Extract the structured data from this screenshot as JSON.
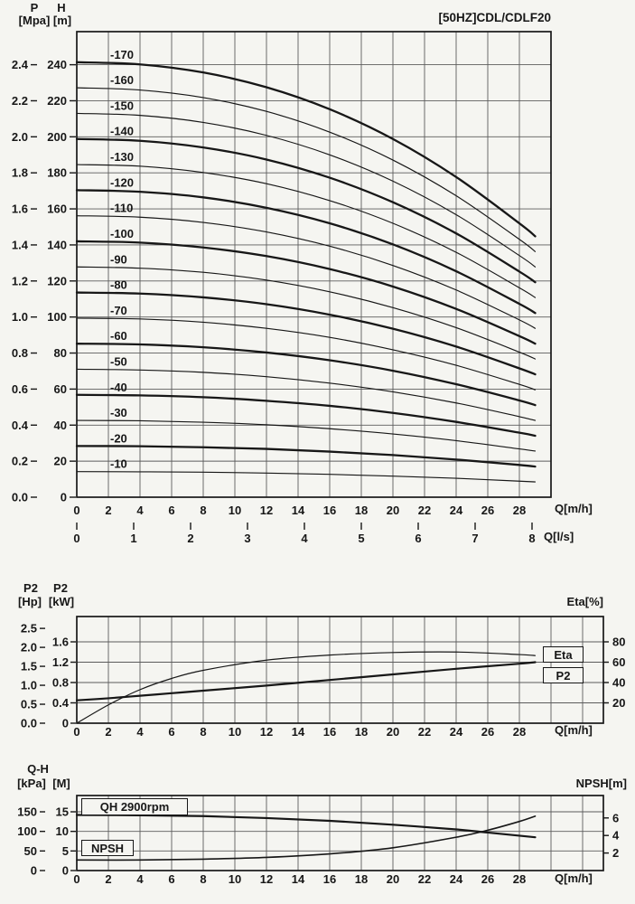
{
  "labels": {
    "p": "P",
    "h": "H",
    "mpa": "[Mpa]",
    "m": "[m]",
    "q_mh": "Q[m/h]",
    "q_ls": "Q[l/s]",
    "p2_hp": "P2",
    "p2_kw": "P2",
    "hp": "[Hp]",
    "kw": "[kW]",
    "eta_pct": "Eta[%]",
    "qh": "Q-H",
    "kpa": "[kPa]",
    "m_upper": "[M]",
    "npsh_m": "NPSH[m]"
  },
  "chart_data": [
    {
      "id": "head-curves",
      "type": "line",
      "title": "[50HZ]CDL/CDLF20",
      "x_axis": {
        "label": "Q[m/h]",
        "min": 0,
        "max": 30,
        "ticks": [
          0,
          2,
          4,
          6,
          8,
          10,
          12,
          14,
          16,
          18,
          20,
          22,
          24,
          26,
          28
        ]
      },
      "x_axis_secondary": {
        "label": "Q[l/s]",
        "min": 0,
        "max": 8,
        "ticks": [
          0,
          1,
          2,
          3,
          4,
          5,
          6,
          7,
          8
        ]
      },
      "y_axis_mpa": {
        "label": "P [Mpa]",
        "min": 0,
        "max": 2.4,
        "ticks": [
          "0.0",
          "0.2",
          "0.4",
          "0.6",
          "0.8",
          "1.0",
          "1.2",
          "1.4",
          "1.6",
          "1.8",
          "2.0",
          "2.2",
          "2.4"
        ]
      },
      "y_axis_m": {
        "label": "H [m]",
        "min": 0,
        "max": 258,
        "ticks": [
          0,
          20,
          40,
          60,
          80,
          100,
          120,
          140,
          160,
          180,
          200,
          220,
          240
        ]
      },
      "q": [
        0,
        4,
        8,
        12,
        16,
        20,
        24,
        28,
        29
      ],
      "curves": [
        {
          "label": "-170",
          "bold": true,
          "head_m": [
            241.4,
            240.2,
            235.7,
            227.5,
            215.3,
            198.8,
            177.7,
            152.0,
            144.8
          ]
        },
        {
          "label": "-160",
          "bold": false,
          "head_m": [
            227.2,
            226.0,
            221.8,
            214.1,
            202.6,
            187.1,
            167.3,
            143.1,
            136.3
          ]
        },
        {
          "label": "-150",
          "bold": false,
          "head_m": [
            213.0,
            211.9,
            208.0,
            200.8,
            190.0,
            175.4,
            156.8,
            134.1,
            127.8
          ]
        },
        {
          "label": "-140",
          "bold": true,
          "head_m": [
            198.8,
            197.8,
            194.1,
            187.4,
            177.3,
            163.7,
            146.4,
            125.2,
            119.3
          ]
        },
        {
          "label": "-130",
          "bold": false,
          "head_m": [
            184.6,
            183.7,
            180.2,
            174.0,
            164.6,
            152.0,
            135.9,
            116.2,
            110.8
          ]
        },
        {
          "label": "-120",
          "bold": true,
          "head_m": [
            170.4,
            169.5,
            166.4,
            160.6,
            152.0,
            140.3,
            125.4,
            107.3,
            102.2
          ]
        },
        {
          "label": "-110",
          "bold": false,
          "head_m": [
            156.2,
            155.4,
            152.5,
            147.2,
            139.3,
            128.6,
            115.0,
            98.4,
            93.7
          ]
        },
        {
          "label": "-100",
          "bold": true,
          "head_m": [
            142.0,
            141.3,
            138.6,
            133.8,
            126.6,
            116.9,
            104.5,
            89.4,
            85.2
          ]
        },
        {
          "label": "-90",
          "bold": false,
          "head_m": [
            127.8,
            127.1,
            124.8,
            120.5,
            114.0,
            105.2,
            94.1,
            80.5,
            76.7
          ]
        },
        {
          "label": "-80",
          "bold": true,
          "head_m": [
            113.6,
            113.0,
            110.9,
            107.1,
            101.3,
            93.5,
            83.6,
            71.5,
            68.2
          ]
        },
        {
          "label": "-70",
          "bold": false,
          "head_m": [
            99.4,
            98.9,
            97.1,
            93.7,
            88.7,
            81.8,
            73.2,
            62.6,
            59.6
          ]
        },
        {
          "label": "-60",
          "bold": true,
          "head_m": [
            85.2,
            84.8,
            83.2,
            80.3,
            76.0,
            70.2,
            62.7,
            53.7,
            51.1
          ]
        },
        {
          "label": "-50",
          "bold": false,
          "head_m": [
            71.0,
            70.6,
            69.3,
            66.9,
            63.3,
            58.5,
            52.3,
            44.7,
            42.6
          ]
        },
        {
          "label": "-40",
          "bold": true,
          "head_m": [
            56.8,
            56.5,
            55.5,
            53.5,
            50.7,
            46.8,
            41.8,
            35.8,
            34.1
          ]
        },
        {
          "label": "-30",
          "bold": false,
          "head_m": [
            42.6,
            42.4,
            41.6,
            40.2,
            38.0,
            35.1,
            31.4,
            26.8,
            25.6
          ]
        },
        {
          "label": "-20",
          "bold": true,
          "head_m": [
            28.4,
            28.3,
            27.7,
            26.8,
            25.3,
            23.4,
            20.9,
            17.9,
            17.0
          ]
        },
        {
          "label": "-10",
          "bold": false,
          "head_m": [
            14.2,
            14.1,
            13.9,
            13.4,
            12.7,
            11.7,
            10.5,
            8.9,
            8.5
          ]
        }
      ]
    },
    {
      "id": "power-efficiency",
      "type": "line",
      "x_axis": {
        "label": "Q[m/h]",
        "min": 0,
        "max": 33,
        "ticks": [
          0,
          2,
          4,
          6,
          8,
          10,
          12,
          14,
          16,
          18,
          20,
          22,
          24,
          26,
          28
        ]
      },
      "y_axis_kw": {
        "label": "P2 [kW]",
        "min": 0,
        "max": 1.6,
        "ticks": [
          "0",
          "0.4",
          "0.8",
          "1.2",
          "1.6"
        ]
      },
      "y_axis_hp": {
        "label": "P2 [Hp]",
        "min": 0,
        "max": 2.5,
        "ticks": [
          "0.0",
          "0.5",
          "1.0",
          "1.5",
          "2.0",
          "2.5"
        ]
      },
      "y_axis_eta": {
        "label": "Eta[%]",
        "min": 0,
        "max": 80,
        "ticks": [
          20,
          40,
          60,
          80
        ]
      },
      "q": [
        0,
        2,
        4,
        6,
        8,
        12,
        16,
        20,
        24,
        28,
        29
      ],
      "series": [
        {
          "name": "P2",
          "unit": "kW",
          "values": [
            0.45,
            0.49,
            0.54,
            0.59,
            0.64,
            0.74,
            0.85,
            0.96,
            1.07,
            1.17,
            1.2
          ]
        },
        {
          "name": "Eta",
          "unit": "%",
          "values": [
            0,
            18,
            33,
            44,
            52,
            62,
            67,
            69.5,
            70,
            67.5,
            66.5
          ]
        }
      ]
    },
    {
      "id": "qh-npsh",
      "type": "line",
      "x_axis": {
        "label": "Q[m/h]",
        "min": 0,
        "max": 33,
        "ticks": [
          0,
          2,
          4,
          6,
          8,
          10,
          12,
          14,
          16,
          18,
          20,
          22,
          24,
          26,
          28
        ]
      },
      "y_axis_kpa": {
        "label": "Q-H [kPa]",
        "min": 0,
        "max": 150,
        "ticks": [
          "0",
          "50",
          "100",
          "150"
        ]
      },
      "y_axis_m": {
        "label": "[M]",
        "min": 0,
        "max": 15,
        "ticks": [
          0,
          5,
          10,
          15
        ]
      },
      "y_axis_npsh": {
        "label": "NPSH[m]",
        "min": 0,
        "max": 6,
        "ticks": [
          2,
          4,
          6
        ]
      },
      "q": [
        0,
        4,
        8,
        12,
        16,
        20,
        24,
        26,
        28,
        29
      ],
      "series": [
        {
          "name": "QH 2900rpm",
          "unit": "M",
          "values": [
            14.2,
            14.1,
            13.9,
            13.4,
            12.7,
            11.7,
            10.5,
            9.7,
            8.9,
            8.5
          ]
        },
        {
          "name": "NPSH",
          "unit": "m",
          "values": [
            1.2,
            1.2,
            1.3,
            1.5,
            1.9,
            2.6,
            3.8,
            4.6,
            5.6,
            6.2
          ]
        }
      ]
    }
  ]
}
